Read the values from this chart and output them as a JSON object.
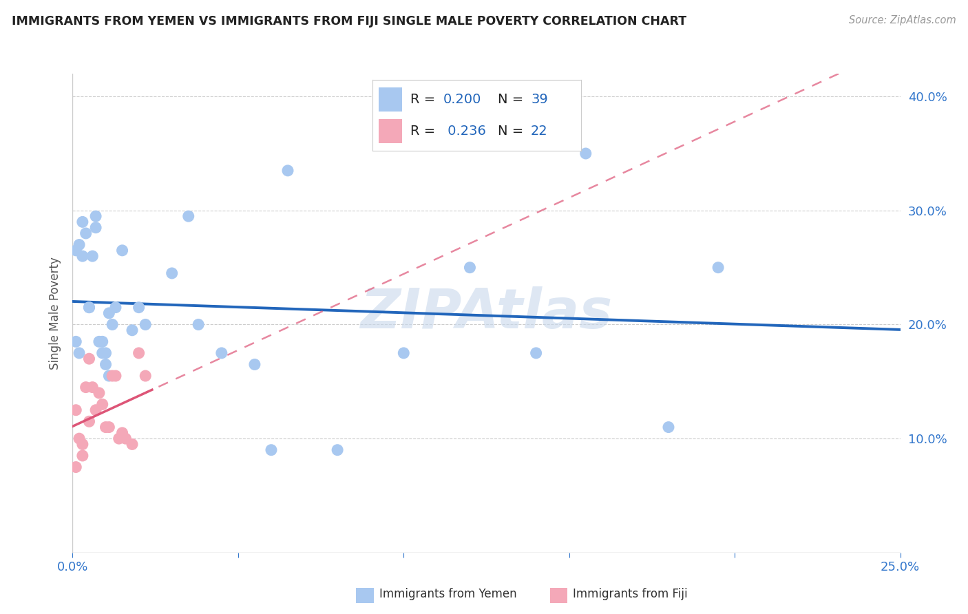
{
  "title": "IMMIGRANTS FROM YEMEN VS IMMIGRANTS FROM FIJI SINGLE MALE POVERTY CORRELATION CHART",
  "source": "Source: ZipAtlas.com",
  "ylabel": "Single Male Poverty",
  "x_min": 0.0,
  "x_max": 0.25,
  "y_min": 0.0,
  "y_max": 0.42,
  "blue_color": "#a8c8f0",
  "pink_color": "#f4a8b8",
  "line_blue": "#2266bb",
  "line_pink": "#dd5577",
  "watermark": "ZIPAtlas",
  "yemen_x": [
    0.001,
    0.001,
    0.002,
    0.002,
    0.003,
    0.003,
    0.004,
    0.005,
    0.005,
    0.006,
    0.007,
    0.007,
    0.008,
    0.009,
    0.009,
    0.01,
    0.01,
    0.011,
    0.011,
    0.012,
    0.013,
    0.015,
    0.018,
    0.02,
    0.022,
    0.03,
    0.035,
    0.038,
    0.045,
    0.055,
    0.06,
    0.065,
    0.08,
    0.1,
    0.12,
    0.14,
    0.155,
    0.195,
    0.18
  ],
  "yemen_y": [
    0.265,
    0.185,
    0.27,
    0.175,
    0.29,
    0.26,
    0.28,
    0.215,
    0.215,
    0.26,
    0.295,
    0.285,
    0.185,
    0.185,
    0.175,
    0.175,
    0.165,
    0.21,
    0.155,
    0.2,
    0.215,
    0.265,
    0.195,
    0.215,
    0.2,
    0.245,
    0.295,
    0.2,
    0.175,
    0.165,
    0.09,
    0.335,
    0.09,
    0.175,
    0.25,
    0.175,
    0.35,
    0.25,
    0.11
  ],
  "fiji_x": [
    0.001,
    0.001,
    0.002,
    0.003,
    0.003,
    0.004,
    0.005,
    0.005,
    0.006,
    0.007,
    0.008,
    0.009,
    0.01,
    0.011,
    0.012,
    0.013,
    0.014,
    0.015,
    0.016,
    0.018,
    0.02,
    0.022
  ],
  "fiji_y": [
    0.125,
    0.075,
    0.1,
    0.095,
    0.085,
    0.145,
    0.17,
    0.115,
    0.145,
    0.125,
    0.14,
    0.13,
    0.11,
    0.11,
    0.155,
    0.155,
    0.1,
    0.105,
    0.1,
    0.095,
    0.175,
    0.155
  ]
}
